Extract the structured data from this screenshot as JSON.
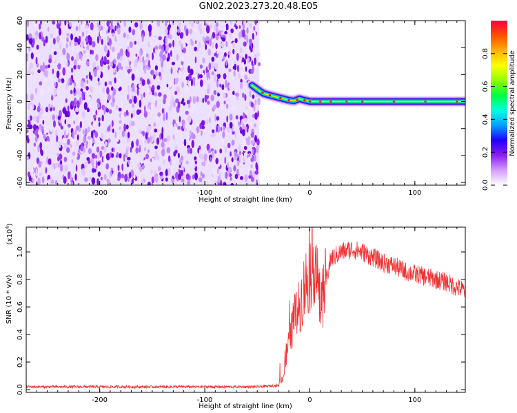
{
  "title": "GN02.2023.273.20.48.E05",
  "colors": {
    "snr_line": "#f03030",
    "axis": "#000000"
  },
  "chart_data": [
    {
      "type": "heatmap",
      "xlabel": "Height of straight line (km)",
      "ylabel": "Frequency (Hz)",
      "xlim": [
        -270,
        148
      ],
      "ylim": [
        -62,
        60
      ],
      "x_ticks": [
        -200,
        -100,
        0,
        100
      ],
      "x_tick_labels": [
        "-200",
        "-100",
        "0",
        "100"
      ],
      "y_ticks": [
        -60,
        -40,
        -20,
        0,
        20,
        40,
        60
      ],
      "y_tick_labels": [
        "-60",
        "-40",
        "-20",
        "0",
        "20",
        "40",
        "60"
      ],
      "noise_region_x": [
        -270,
        -48
      ],
      "signal_ridge": {
        "x": [
          -55,
          -48,
          -44,
          -40,
          -35,
          -30,
          -25,
          -20,
          -15,
          -10,
          -5,
          0,
          20,
          50,
          80,
          110,
          148
        ],
        "y": [
          12,
          8,
          6,
          5,
          4,
          3,
          2,
          1,
          0.5,
          2,
          1,
          0,
          0,
          0,
          0,
          0,
          0
        ]
      },
      "colorbar": {
        "label": "Normalized spectral amplitude",
        "range": [
          0,
          1
        ],
        "ticks": [
          0.0,
          0.2,
          0.4,
          0.6,
          0.8
        ],
        "tick_labels": [
          "0.0",
          "0.2",
          "0.4",
          "0.6",
          "0.8"
        ],
        "colors": [
          "#ffffff",
          "#d59cff",
          "#8a1ef0",
          "#2000ff",
          "#00a0ff",
          "#00ffe0",
          "#00ff40",
          "#90ff00",
          "#ffff00",
          "#ffb000",
          "#ff5000",
          "#ff0040"
        ]
      }
    },
    {
      "type": "line",
      "xlabel": "Height of straight line (km)",
      "ylabel": "SNR (10 * v/v)",
      "scale_label": "(x10",
      "scale_exponent": "4",
      "scale_close": ")",
      "xlim": [
        -270,
        148
      ],
      "ylim": [
        -0.02,
        1.18
      ],
      "x_ticks": [
        -200,
        -100,
        0,
        100
      ],
      "x_tick_labels": [
        "-200",
        "-100",
        "0",
        "100"
      ],
      "y_ticks": [
        0.0,
        0.2,
        0.4,
        0.6,
        0.8,
        1.0
      ],
      "y_tick_labels": [
        "0.0",
        "0.2",
        "0.4",
        "0.6",
        "0.8",
        "1.0"
      ],
      "series": [
        {
          "x": [
            -270,
            -200,
            -100,
            -50,
            -30,
            -25,
            -20,
            -15,
            -10,
            -5,
            0,
            5,
            10,
            20,
            30,
            40,
            50,
            60,
            70,
            80,
            90,
            100,
            110,
            120,
            130,
            140,
            148
          ],
          "y": [
            0.02,
            0.02,
            0.02,
            0.02,
            0.03,
            0.1,
            0.35,
            0.5,
            0.6,
            0.75,
            0.85,
            0.95,
            0.6,
            0.95,
            1.0,
            1.02,
            1.0,
            0.96,
            0.92,
            0.9,
            0.86,
            0.84,
            0.82,
            0.8,
            0.78,
            0.74,
            0.72
          ]
        }
      ]
    }
  ]
}
